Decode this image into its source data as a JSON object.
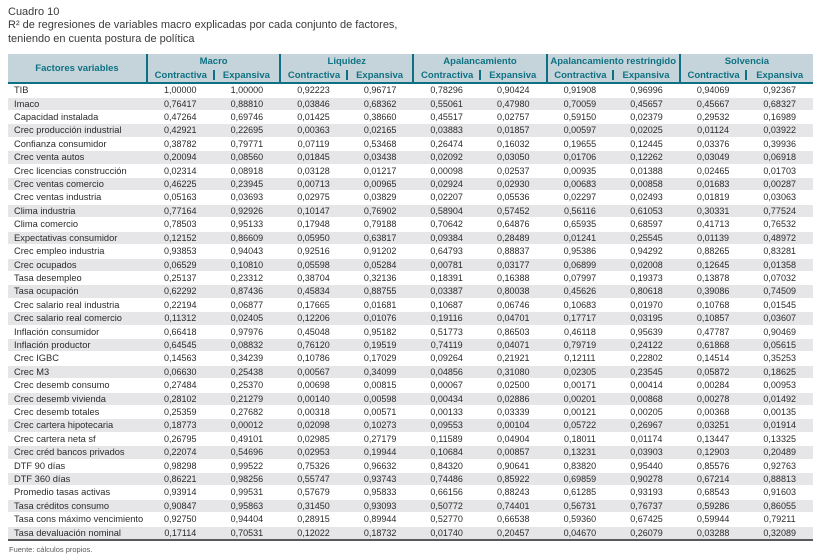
{
  "title": "Cuadro 10",
  "subtitle_lines": [
    "R² de regresiones de variables macro explicadas por cada conjunto de factores,",
    "teniendo en cuenta postura de política"
  ],
  "footer": "Fuente: cálculos propios.",
  "colors": {
    "teal": "#0e7183",
    "header_bg": "#c5d4da",
    "row_alt": "#e6e6e8",
    "bottom_line": "#58595b"
  },
  "table": {
    "row_header": "Factores variables",
    "groups": [
      "Macro",
      "Liquidez",
      "Apalancamiento",
      "Apalancamiento restringido",
      "Solvencia"
    ],
    "subheaders": [
      "Contractiva",
      "Expansiva"
    ],
    "rows": [
      {
        "label": "TIB",
        "values": [
          "1,00000",
          "1,00000",
          "0,92223",
          "0,96717",
          "0,78296",
          "0,90424",
          "0,91908",
          "0,96996",
          "0,94069",
          "0,92367"
        ]
      },
      {
        "label": "Imaco",
        "values": [
          "0,76417",
          "0,88810",
          "0,03846",
          "0,68362",
          "0,55061",
          "0,47980",
          "0,70059",
          "0,45657",
          "0,45667",
          "0,68327"
        ]
      },
      {
        "label": "Capacidad instalada",
        "values": [
          "0,47264",
          "0,69746",
          "0,01425",
          "0,38660",
          "0,45517",
          "0,02757",
          "0,59150",
          "0,02379",
          "0,29532",
          "0,16989"
        ]
      },
      {
        "label": "Crec producción industrial",
        "values": [
          "0,42921",
          "0,22695",
          "0,00363",
          "0,02165",
          "0,03883",
          "0,01857",
          "0,00597",
          "0,02025",
          "0,01124",
          "0,03922"
        ]
      },
      {
        "label": "Confianza consumidor",
        "values": [
          "0,38782",
          "0,79771",
          "0,07119",
          "0,53468",
          "0,26474",
          "0,16032",
          "0,19655",
          "0,12445",
          "0,03376",
          "0,39936"
        ]
      },
      {
        "label": "Crec venta autos",
        "values": [
          "0,20094",
          "0,08560",
          "0,01845",
          "0,03438",
          "0,02092",
          "0,03050",
          "0,01706",
          "0,12262",
          "0,03049",
          "0,06918"
        ]
      },
      {
        "label": "Crec licencias construcción",
        "values": [
          "0,02314",
          "0,08918",
          "0,03128",
          "0,01217",
          "0,00098",
          "0,02537",
          "0,00935",
          "0,01388",
          "0,02465",
          "0,01703"
        ]
      },
      {
        "label": "Crec ventas comercio",
        "values": [
          "0,46225",
          "0,23945",
          "0,00713",
          "0,00965",
          "0,02924",
          "0,02930",
          "0,00683",
          "0,00858",
          "0,01683",
          "0,00287"
        ]
      },
      {
        "label": "Crec ventas industria",
        "values": [
          "0,05163",
          "0,03693",
          "0,02975",
          "0,03829",
          "0,02207",
          "0,05536",
          "0,02297",
          "0,02493",
          "0,01819",
          "0,03063"
        ]
      },
      {
        "label": "Clima industria",
        "values": [
          "0,77164",
          "0,92926",
          "0,10147",
          "0,76902",
          "0,58904",
          "0,57452",
          "0,56116",
          "0,61053",
          "0,30331",
          "0,77524"
        ]
      },
      {
        "label": "Clima comercio",
        "values": [
          "0,78503",
          "0,95133",
          "0,17948",
          "0,79188",
          "0,70642",
          "0,64876",
          "0,65935",
          "0,68597",
          "0,41713",
          "0,76532"
        ]
      },
      {
        "label": "Expectativas consumidor",
        "values": [
          "0,12152",
          "0,86609",
          "0,05950",
          "0,63817",
          "0,09384",
          "0,28489",
          "0,01241",
          "0,25545",
          "0,01139",
          "0,48972"
        ]
      },
      {
        "label": "Crec empleo industria",
        "values": [
          "0,93853",
          "0,94043",
          "0,92516",
          "0,91202",
          "0,64793",
          "0,88837",
          "0,95386",
          "0,94292",
          "0,88265",
          "0,83281"
        ]
      },
      {
        "label": "Crec ocupados",
        "values": [
          "0,06529",
          "0,10810",
          "0,05598",
          "0,05284",
          "0,00781",
          "0,03177",
          "0,06899",
          "0,02008",
          "0,12645",
          "0,01358"
        ]
      },
      {
        "label": "Tasa desempleo",
        "values": [
          "0,25137",
          "0,23312",
          "0,38704",
          "0,32136",
          "0,18391",
          "0,16388",
          "0,07997",
          "0,19373",
          "0,13878",
          "0,07032"
        ]
      },
      {
        "label": "Tasa ocupación",
        "values": [
          "0,62292",
          "0,87436",
          "0,45834",
          "0,88755",
          "0,03387",
          "0,80038",
          "0,45626",
          "0,80618",
          "0,39086",
          "0,74509"
        ]
      },
      {
        "label": "Crec salario real industria",
        "values": [
          "0,22194",
          "0,06877",
          "0,17665",
          "0,01681",
          "0,10687",
          "0,06746",
          "0,10683",
          "0,01970",
          "0,10768",
          "0,01545"
        ]
      },
      {
        "label": "Crec salario real comercio",
        "values": [
          "0,11312",
          "0,02405",
          "0,12206",
          "0,01076",
          "0,19116",
          "0,04701",
          "0,17717",
          "0,03195",
          "0,10857",
          "0,03607"
        ]
      },
      {
        "label": "Inflación consumidor",
        "values": [
          "0,66418",
          "0,97976",
          "0,45048",
          "0,95182",
          "0,51773",
          "0,86503",
          "0,46118",
          "0,95639",
          "0,47787",
          "0,90469"
        ]
      },
      {
        "label": "Inflación productor",
        "values": [
          "0,64545",
          "0,08832",
          "0,76120",
          "0,19519",
          "0,74119",
          "0,04071",
          "0,79719",
          "0,24122",
          "0,61868",
          "0,05615"
        ]
      },
      {
        "label": "Crec IGBC",
        "values": [
          "0,14563",
          "0,34239",
          "0,10786",
          "0,17029",
          "0,09264",
          "0,21921",
          "0,12111",
          "0,22802",
          "0,14514",
          "0,35253"
        ]
      },
      {
        "label": "Crec M3",
        "values": [
          "0,06630",
          "0,25438",
          "0,00567",
          "0,34099",
          "0,04856",
          "0,31080",
          "0,02305",
          "0,23545",
          "0,05872",
          "0,18625"
        ]
      },
      {
        "label": "Crec desemb consumo",
        "values": [
          "0,27484",
          "0,25370",
          "0,00698",
          "0,00815",
          "0,00067",
          "0,02500",
          "0,00171",
          "0,00414",
          "0,00284",
          "0,00953"
        ]
      },
      {
        "label": "Crec desemb vivienda",
        "values": [
          "0,28102",
          "0,21279",
          "0,00140",
          "0,00598",
          "0,00434",
          "0,02886",
          "0,00201",
          "0,00868",
          "0,00278",
          "0,01492"
        ]
      },
      {
        "label": "Crec desemb totales",
        "values": [
          "0,25359",
          "0,27682",
          "0,00318",
          "0,00571",
          "0,00133",
          "0,03339",
          "0,00121",
          "0,00205",
          "0,00368",
          "0,00135"
        ]
      },
      {
        "label": "Crec cartera hipotecaria",
        "values": [
          "0,18773",
          "0,00012",
          "0,02098",
          "0,10273",
          "0,09553",
          "0,00104",
          "0,05722",
          "0,26967",
          "0,03251",
          "0,01914"
        ]
      },
      {
        "label": "Crec cartera neta sf",
        "values": [
          "0,26795",
          "0,49101",
          "0,02985",
          "0,27179",
          "0,11589",
          "0,04904",
          "0,18011",
          "0,01174",
          "0,13447",
          "0,13325"
        ]
      },
      {
        "label": "Crec créd bancos privados",
        "values": [
          "0,22074",
          "0,54696",
          "0,02953",
          "0,19944",
          "0,10684",
          "0,00857",
          "0,13231",
          "0,03903",
          "0,12903",
          "0,20489"
        ]
      },
      {
        "label": "DTF 90 días",
        "values": [
          "0,98298",
          "0,99522",
          "0,75326",
          "0,96632",
          "0,84320",
          "0,90641",
          "0,83820",
          "0,95440",
          "0,85576",
          "0,92763"
        ]
      },
      {
        "label": "DTF 360 días",
        "values": [
          "0,86221",
          "0,98256",
          "0,55747",
          "0,93743",
          "0,74486",
          "0,85922",
          "0,69859",
          "0,90278",
          "0,67214",
          "0,88813"
        ]
      },
      {
        "label": "Promedio tasas activas",
        "values": [
          "0,93914",
          "0,99531",
          "0,57679",
          "0,95833",
          "0,66156",
          "0,88243",
          "0,61285",
          "0,93193",
          "0,68543",
          "0,91603"
        ]
      },
      {
        "label": "Tasa créditos consumo",
        "values": [
          "0,90847",
          "0,95863",
          "0,31450",
          "0,93093",
          "0,50772",
          "0,74401",
          "0,56731",
          "0,76737",
          "0,59286",
          "0,86055"
        ]
      },
      {
        "label": "Tasa cons máximo vencimiento",
        "values": [
          "0,92750",
          "0,94404",
          "0,28915",
          "0,89944",
          "0,52770",
          "0,66538",
          "0,59360",
          "0,67425",
          "0,59944",
          "0,79211"
        ]
      },
      {
        "label": "Tasa devaluación nominal",
        "values": [
          "0,17114",
          "0,70531",
          "0,12022",
          "0,18732",
          "0,01740",
          "0,20457",
          "0,04670",
          "0,26079",
          "0,03288",
          "0,32089"
        ]
      }
    ]
  }
}
